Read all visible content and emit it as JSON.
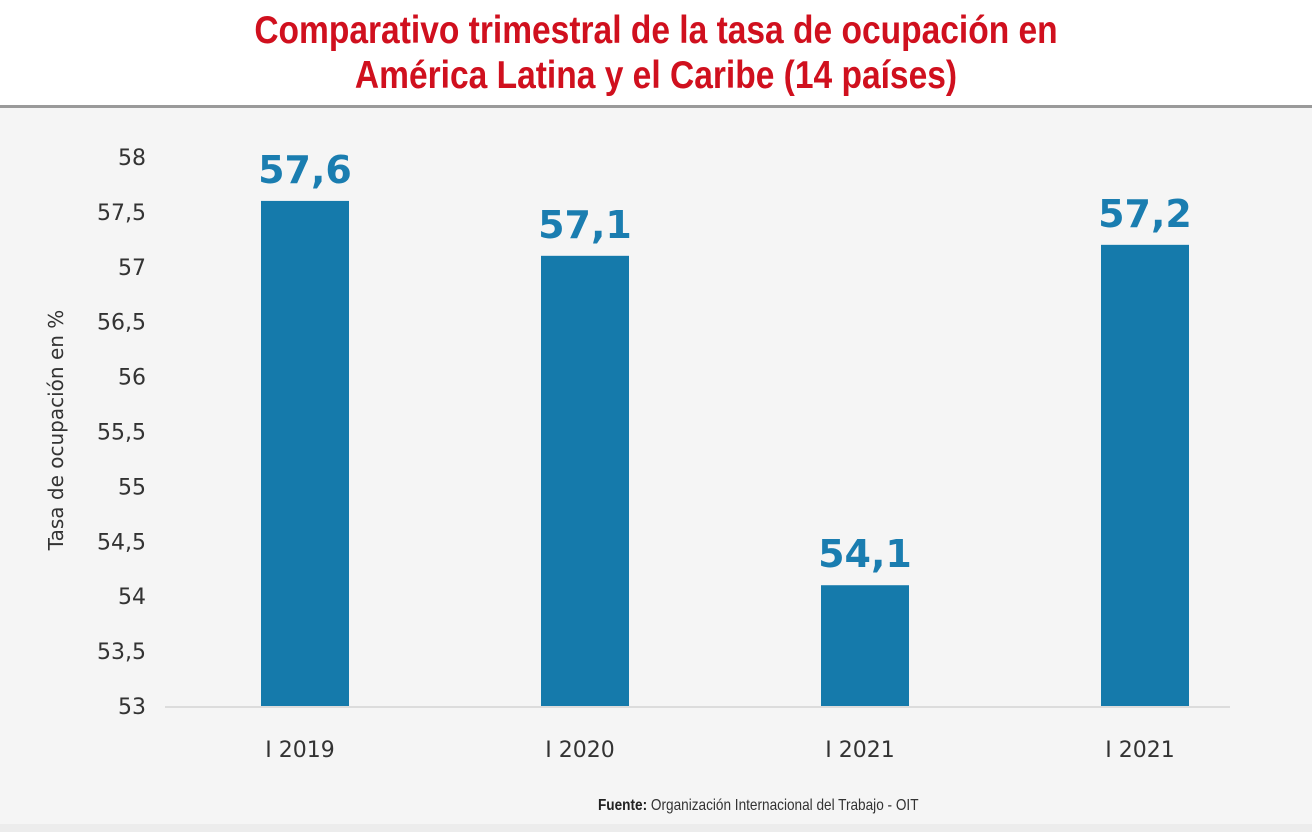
{
  "chart_data": {
    "type": "bar",
    "title_line1": "Comparativo trimestral de la tasa de ocupación en",
    "title_line2": "América Latina y el Caribe (14 países)",
    "categories": [
      "I 2019",
      "I 2020",
      "I 2021",
      "I 2021"
    ],
    "values": [
      57.6,
      57.1,
      54.1,
      57.2
    ],
    "data_labels": [
      "57,6",
      "57,1",
      "54,1",
      "57,2"
    ],
    "xlabel": "",
    "ylabel": "Tasa de ocupación en %",
    "ylim": [
      53,
      58
    ],
    "yticks": [
      "53",
      "53,5",
      "54",
      "54,5",
      "55",
      "55,5",
      "56",
      "56,5",
      "57",
      "57,5",
      "58"
    ],
    "grid": false,
    "legend": "none",
    "colors": {
      "bar": "#157aab",
      "label": "#1a7db0",
      "title": "#d0101e"
    }
  },
  "source": {
    "label": "Fuente:",
    "text": "Organización Internacional del Trabajo - OIT"
  }
}
